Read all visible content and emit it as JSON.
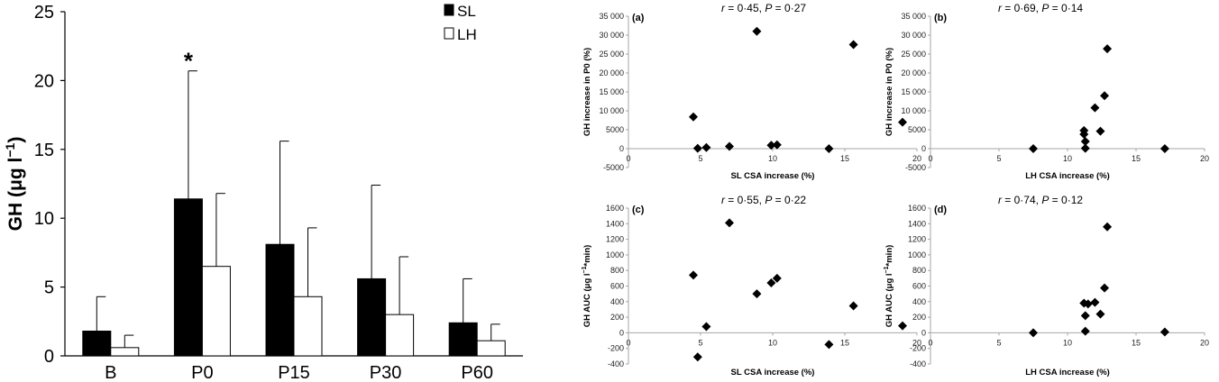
{
  "chart_data": [
    {
      "type": "bar",
      "ylabel": "GH (μg l",
      "ylabel_sup": "−1",
      "ylabel_close": ")",
      "ylim": [
        0,
        25
      ],
      "yticks": [
        0,
        5,
        10,
        15,
        20,
        25
      ],
      "categories": [
        "B",
        "P0",
        "P15",
        "P30",
        "P60"
      ],
      "series": [
        {
          "name": "SL",
          "color": "#000000",
          "values": [
            1.8,
            11.4,
            8.1,
            5.6,
            2.4
          ],
          "errors": [
            2.5,
            9.3,
            7.5,
            6.8,
            3.2
          ]
        },
        {
          "name": "LH",
          "color": "#ffffff",
          "values": [
            0.6,
            6.5,
            4.3,
            3.0,
            1.1
          ],
          "errors": [
            0.9,
            5.3,
            5.0,
            4.2,
            1.2
          ]
        }
      ],
      "annotations": [
        {
          "category": "P0",
          "text": "*"
        }
      ],
      "legend_position": "top-right"
    },
    {
      "type": "scatter",
      "panel": "(a)",
      "stat_r": "0·45",
      "stat_p": "0·27",
      "xlabel": "SL CSA increase (%)",
      "ylabel": "GH increase in P0 (%)",
      "xlim": [
        0,
        20
      ],
      "xticks": [
        0,
        5,
        10,
        15,
        20
      ],
      "ylim": [
        -5000,
        35000
      ],
      "yticks": [
        "-5000",
        "0",
        "5000",
        "10 000",
        "15 000",
        "20 000",
        "25 000",
        "30 000",
        "35 000"
      ],
      "points": [
        [
          4.5,
          8400
        ],
        [
          4.8,
          100
        ],
        [
          5.4,
          300
        ],
        [
          7.0,
          600
        ],
        [
          8.9,
          31000
        ],
        [
          9.9,
          900
        ],
        [
          10.3,
          1000
        ],
        [
          13.9,
          0
        ],
        [
          15.6,
          27500
        ],
        [
          19.0,
          7000
        ]
      ]
    },
    {
      "type": "scatter",
      "panel": "(b)",
      "stat_r": "0·69",
      "stat_p": "0·14",
      "xlabel": "LH CSA increase (%)",
      "ylabel": "GH increase in P0 (%)",
      "xlim": [
        0,
        20
      ],
      "xticks": [
        0,
        5,
        10,
        15,
        20
      ],
      "ylim": [
        -5000,
        35000
      ],
      "yticks": [
        "-5000",
        "0",
        "5000",
        "10 000",
        "15 000",
        "20 000",
        "25 000",
        "30 000",
        "35 000"
      ],
      "points": [
        [
          7.5,
          0
        ],
        [
          11.2,
          4800
        ],
        [
          11.2,
          3800
        ],
        [
          11.3,
          1900
        ],
        [
          11.3,
          100
        ],
        [
          12.0,
          10800
        ],
        [
          12.4,
          4600
        ],
        [
          12.7,
          14000
        ],
        [
          12.9,
          26400
        ],
        [
          17.1,
          0
        ]
      ]
    },
    {
      "type": "scatter",
      "panel": "(c)",
      "stat_r": "0·55",
      "stat_p": "0·22",
      "xlabel": "SL CSA increase (%)",
      "ylabel": "GH AUC (μg l",
      "ylabel_sup": "−1",
      "ylabel_close": "*min)",
      "xlim": [
        0,
        20
      ],
      "xticks": [
        0,
        5,
        10,
        15,
        20
      ],
      "ylim": [
        -400,
        1600
      ],
      "yticks": [
        "-400",
        "-200",
        "0",
        "200",
        "400",
        "600",
        "800",
        "1000",
        "1200",
        "1400",
        "1600"
      ],
      "points": [
        [
          4.5,
          740
        ],
        [
          4.8,
          -310
        ],
        [
          5.4,
          80
        ],
        [
          7.0,
          1410
        ],
        [
          8.9,
          500
        ],
        [
          9.9,
          640
        ],
        [
          10.3,
          700
        ],
        [
          13.9,
          -150
        ],
        [
          15.6,
          345
        ],
        [
          19.0,
          90
        ]
      ]
    },
    {
      "type": "scatter",
      "panel": "(d)",
      "stat_r": "0·74",
      "stat_p": "0·12",
      "xlabel": "LH CSA increase (%)",
      "ylabel": "GH AUC (μg l",
      "ylabel_sup": "−1",
      "ylabel_close": "*min)",
      "xlim": [
        0,
        20
      ],
      "xticks": [
        0,
        5,
        10,
        15,
        20
      ],
      "ylim": [
        -400,
        1600
      ],
      "yticks": [
        "-400",
        "-200",
        "0",
        "200",
        "400",
        "600",
        "800",
        "1000",
        "1200",
        "1400",
        "1600"
      ],
      "points": [
        [
          7.5,
          0
        ],
        [
          11.2,
          380
        ],
        [
          11.3,
          220
        ],
        [
          11.3,
          20
        ],
        [
          11.5,
          370
        ],
        [
          12.0,
          390
        ],
        [
          12.4,
          240
        ],
        [
          12.7,
          575
        ],
        [
          12.9,
          1360
        ],
        [
          17.1,
          10
        ]
      ]
    }
  ]
}
